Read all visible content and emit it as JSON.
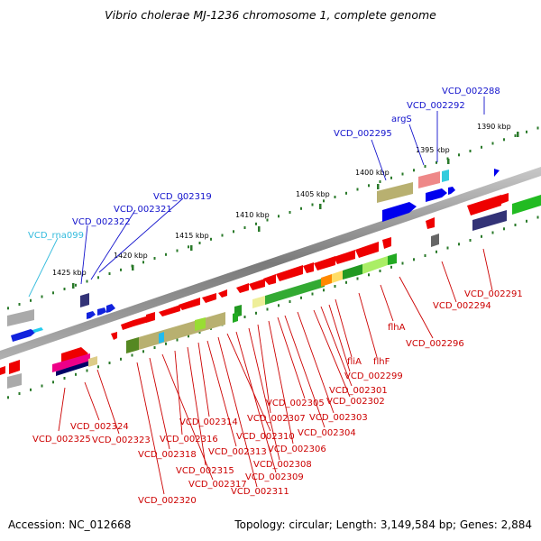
{
  "title": "Vibrio cholerae MJ-1236 chromosome 1, complete genome",
  "footer": {
    "accession": "Accession: NC_012668",
    "summary": "Topology: circular; Length: 3,149,584 bp; Genes: 2,884"
  },
  "colors": {
    "backbone": "#8a8a8a",
    "forward_label": "#1212cc",
    "reverse_label": "#cc0000",
    "rna_label": "#33bbdd",
    "tick": "#2a7a2a"
  },
  "scale_ticks": [
    "1390 kbp",
    "1395 kbp",
    "1400 kbp",
    "1405 kbp",
    "1410 kbp",
    "1415 kbp",
    "1420 kbp",
    "1425 kbp"
  ],
  "labels_top": [
    "VCD_002288",
    "VCD_002292",
    "argS",
    "VCD_002295",
    "VCD_002319",
    "VCD_002321",
    "VCD_002322",
    "VCD_rna099"
  ],
  "labels_right": [
    "VCD_002291",
    "VCD_002294",
    "VCD_002296",
    "flhA",
    "flhF",
    "fliA",
    "VCD_002299",
    "VCD_002301",
    "VCD_002302",
    "VCD_002303",
    "VCD_002304",
    "VCD_002305"
  ],
  "labels_bottom": [
    "VCD_002306",
    "VCD_002307",
    "VCD_002308",
    "VCD_002309",
    "VCD_002310",
    "VCD_002311",
    "VCD_002313",
    "VCD_002314",
    "VCD_002315",
    "VCD_002316",
    "VCD_002317",
    "VCD_002318",
    "VCD_002320",
    "VCD_002323",
    "VCD_002324",
    "VCD_002325"
  ]
}
